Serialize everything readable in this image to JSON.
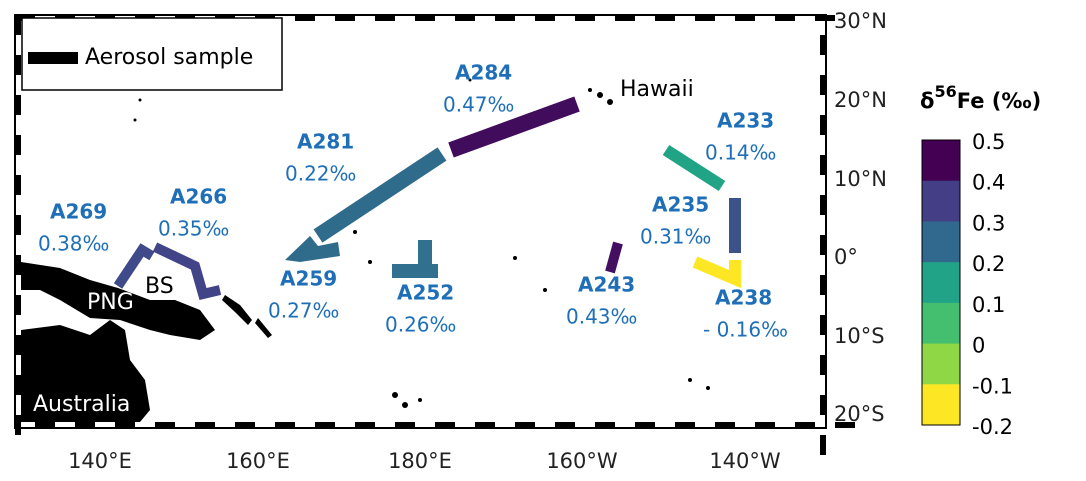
{
  "map": {
    "legend": {
      "label": "Aerosol sample"
    },
    "lon_ticks": [
      "140°E",
      "160°E",
      "180°E",
      "160°W",
      "140°W"
    ],
    "lat_ticks": [
      "30°N",
      "20°N",
      "10°N",
      "0°",
      "10°S",
      "20°S"
    ],
    "places": [
      "Hawaii",
      "PNG",
      "BS",
      "Australia"
    ],
    "samples": [
      {
        "name": "A284",
        "label": "0.47‰",
        "color": "#420c5c"
      },
      {
        "name": "A281",
        "label": "0.22‰",
        "color": "#2f6c8c"
      },
      {
        "name": "A259",
        "label": "0.27‰",
        "color": "#2f6c8c"
      },
      {
        "name": "A252",
        "label": "0.26‰",
        "color": "#31708e"
      },
      {
        "name": "A269",
        "label": "0.38‰",
        "color": "#3f4a8a"
      },
      {
        "name": "A266",
        "label": "0.35‰",
        "color": "#414487"
      },
      {
        "name": "A243",
        "label": "0.43‰",
        "color": "#440f61"
      },
      {
        "name": "A233",
        "label": "0.14‰",
        "color": "#21a385"
      },
      {
        "name": "A235",
        "label": "0.31‰",
        "color": "#3b528b"
      },
      {
        "name": "A238",
        "label": "- 0.16‰",
        "color": "#fde725"
      }
    ],
    "colorbar": {
      "title": {
        "prefix": "δ",
        "sup": "56",
        "suffix": "Fe (‰)"
      },
      "ticks": [
        "0.5",
        "0.4",
        "0.3",
        "0.2",
        "0.1",
        "0",
        "-0.1",
        "-0.2"
      ],
      "colors": [
        "#440154",
        "#433e85",
        "#31688e",
        "#20a386",
        "#44bf70",
        "#8fd744",
        "#fde725"
      ]
    }
  }
}
